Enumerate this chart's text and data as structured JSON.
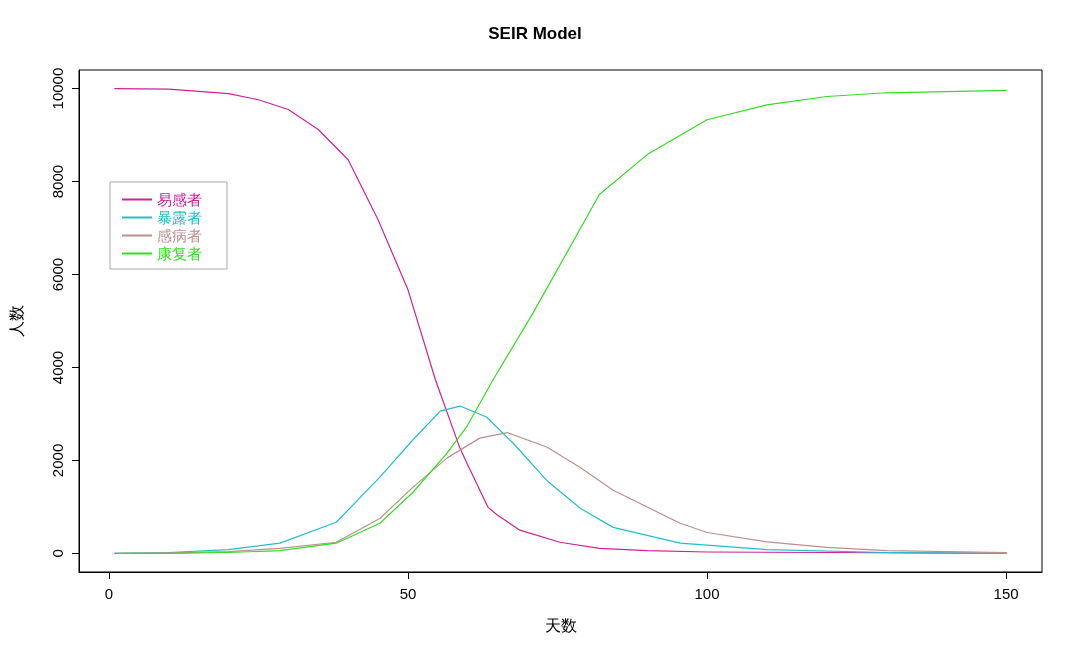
{
  "chart_data": {
    "type": "line",
    "title": "SEIR Model",
    "xlabel": "天数",
    "ylabel": "人数",
    "xlim": [
      -5,
      156
    ],
    "xticks": [
      0,
      50,
      100,
      150
    ],
    "ylim": [
      -400,
      10400
    ],
    "yticks": [
      0,
      2000,
      4000,
      6000,
      8000,
      10000
    ],
    "grid": false,
    "legend": "top left",
    "marker": "none",
    "line_style": "solid",
    "series": [
      {
        "name": "易感者",
        "color": "#cc2299",
        "x": [
          1,
          10,
          20,
          25,
          30,
          35,
          40,
          45,
          50,
          54.6,
          58.7,
          60,
          63.4,
          65,
          68.7,
          75.4,
          82,
          90,
          100,
          120,
          150
        ],
        "values": [
          10000,
          9990,
          9890,
          9760,
          9550,
          9120,
          8470,
          7180,
          5670,
          3730,
          2260,
          1900,
          990,
          820,
          500,
          240,
          110,
          60,
          30,
          20,
          0
        ]
      },
      {
        "name": "暴露者",
        "color": "#22bfc6",
        "x": [
          1,
          10,
          20,
          28.6,
          38,
          45.3,
          50.8,
          55.4,
          58.7,
          63.2,
          67.6,
          73.2,
          78.8,
          84.3,
          95.5,
          110,
          130,
          150
        ],
        "values": [
          0,
          20,
          80,
          220,
          670,
          1640,
          2440,
          3060,
          3170,
          2930,
          2370,
          1570,
          970,
          560,
          220,
          80,
          20,
          0
        ]
      },
      {
        "name": "感病者",
        "color": "#bc8f8f",
        "x": [
          1,
          10,
          20,
          28.6,
          38,
          45.3,
          50.8,
          56.5,
          62,
          66.6,
          73.2,
          78.8,
          84.3,
          95.5,
          100,
          110,
          120,
          130,
          150
        ],
        "values": [
          0,
          10,
          40,
          110,
          240,
          750,
          1420,
          2050,
          2480,
          2600,
          2290,
          1850,
          1360,
          650,
          450,
          250,
          130,
          60,
          20
        ]
      },
      {
        "name": "康复者",
        "color": "#33dd22",
        "x": [
          1,
          10,
          20,
          28.6,
          38,
          45.3,
          50.8,
          56.5,
          59.8,
          64.2,
          70.9,
          82,
          90,
          100,
          110,
          120,
          130,
          150
        ],
        "values": [
          0,
          0,
          20,
          60,
          220,
          650,
          1310,
          2150,
          2720,
          3730,
          5170,
          7720,
          8580,
          9330,
          9650,
          9830,
          9910,
          9960
        ]
      }
    ]
  }
}
